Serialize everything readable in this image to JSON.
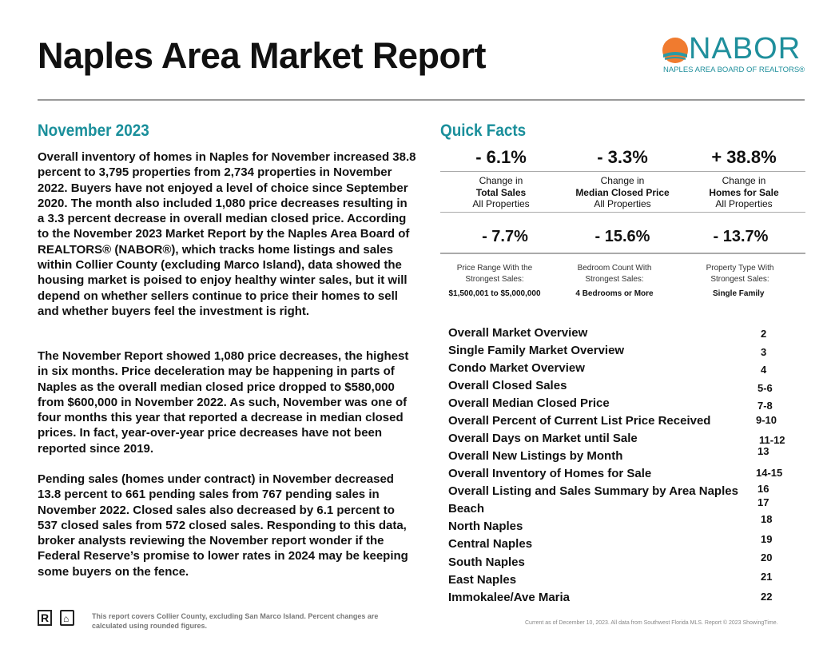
{
  "header": {
    "title": "Naples Area Market Report",
    "logo_word": "NABOR",
    "logo_sub": "NAPLES AREA BOARD OF REALTORS®"
  },
  "month": "November 2023",
  "paragraphs": [
    "Overall inventory of homes in Naples for November increased 38.8 percent to 3,795 properties from 2,734 properties in November 2022. Buyers have not enjoyed a level of choice since September 2020. The month also included 1,080 price decreases resulting in a 3.3 percent decrease in overall median closed price. According to the November 2023 Market Report by the Naples Area Board of REALTORS® (NABOR®), which tracks home listings and sales within Collier County (excluding Marco Island), data showed the housing market is poised to enjoy healthy winter sales, but it will depend on whether sellers continue to price their homes to sell and whether buyers feel the investment is right.",
    "The November Report showed 1,080 price decreases, the highest in six months. Price deceleration may be happening in parts of Naples as the overall median closed price dropped to $580,000 from $600,000 in November 2022. As such, November was one of four months this year that reported a decrease in median closed prices. In fact, year-over-year price decreases have not been reported since 2019.",
    "Pending sales (homes under contract) in November decreased 13.8 percent to 661 pending sales from 767 pending sales in November 2022. Closed sales also decreased by 6.1 percent to 537 closed sales from 572 closed sales. Responding to this data, broker analysts reviewing the November report wonder if the Federal Reserve’s promise to lower rates in 2024 may be keeping some buyers on the fence."
  ],
  "quick_facts": {
    "title": "Quick Facts",
    "row1": [
      {
        "value": "- 6.1%",
        "l1": "Change in",
        "l2": "Total Sales",
        "l3": "All Properties"
      },
      {
        "value": "- 3.3%",
        "l1": "Change in",
        "l2": "Median Closed Price",
        "l3": "All Properties"
      },
      {
        "value": "+ 38.8%",
        "l1": "Change in",
        "l2": "Homes for Sale",
        "l3": "All Properties"
      }
    ],
    "row2": [
      {
        "value": "- 7.7%",
        "l1": "Price Range With the",
        "l2": "Strongest Sales:",
        "l3": "$1,500,001 to $5,000,000"
      },
      {
        "value": "- 15.6%",
        "l1": "Bedroom Count With",
        "l2": "Strongest Sales:",
        "l3": "4 Bedrooms or More"
      },
      {
        "value": "- 13.7%",
        "l1": "Property Type With",
        "l2": "Strongest Sales:",
        "l3": "Single Family"
      }
    ]
  },
  "toc": [
    {
      "label": "Overall Market Overview",
      "page": "2"
    },
    {
      "label": "Single Family Market Overview",
      "page": "3"
    },
    {
      "label": "Condo Market Overview",
      "page": "4"
    },
    {
      "label": "Overall Closed Sales",
      "page": "5-6"
    },
    {
      "label": "Overall Median Closed Price",
      "page": "7-8"
    },
    {
      "label": "Overall Percent of Current List Price Received",
      "page": "9-10"
    },
    {
      "label": "Overall Days on Market until Sale",
      "page": "11-12"
    },
    {
      "label": "Overall New Listings by Month",
      "page": "13"
    },
    {
      "label": "Overall Inventory of Homes for Sale",
      "page": "14-15"
    },
    {
      "label": "Overall Listing and Sales Summary by Area Naples",
      "page": "16"
    },
    {
      "label": "Beach",
      "page": "17"
    },
    {
      "label": "North Naples",
      "page": "18"
    },
    {
      "label": "Central Naples",
      "page": "19"
    },
    {
      "label": "South Naples",
      "page": "20"
    },
    {
      "label": "East Naples",
      "page": "21"
    },
    {
      "label": "Immokalee/Ave Maria",
      "page": "22"
    }
  ],
  "footer": {
    "note": "This report covers Collier County, excluding San Marco Island. Percent changes are calculated using rounded figures.",
    "source": "Current as of December 10, 2023. All data from Southwest Florida MLS. Report © 2023 ShowingTime."
  },
  "colors": {
    "accent": "#1a8f9b",
    "logo_orange": "#f07b2f"
  }
}
